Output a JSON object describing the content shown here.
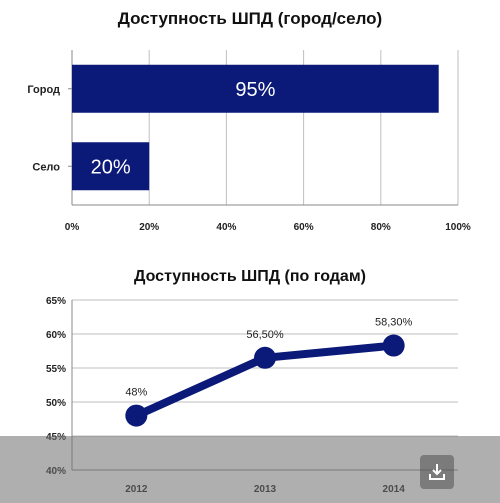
{
  "colors": {
    "bar": "#0b1a78",
    "line": "#0b1a78",
    "grid": "#bfbfbf"
  },
  "chart_data": [
    {
      "type": "bar",
      "orientation": "horizontal",
      "title": "Доступность ШПД (город/село)",
      "categories": [
        "Город",
        "Село"
      ],
      "values": [
        95,
        20
      ],
      "value_labels": [
        "95%",
        "20%"
      ],
      "xlim": [
        0,
        100
      ],
      "x_ticks": [
        "0%",
        "20%",
        "40%",
        "60%",
        "80%",
        "100%"
      ],
      "grid": true,
      "legend": "none"
    },
    {
      "type": "line",
      "title": "Доступность ШПД (по годам)",
      "x": [
        "2012",
        "2013",
        "2014"
      ],
      "values": [
        48,
        56.5,
        58.3
      ],
      "value_labels": [
        "48%",
        "56,50%",
        "58,30%"
      ],
      "ylim": [
        40,
        65
      ],
      "y_ticks": [
        "40%",
        "45%",
        "50%",
        "55%",
        "60%",
        "65%"
      ],
      "grid": true,
      "legend": "none"
    }
  ],
  "overlay": {
    "icon": "download-icon"
  }
}
